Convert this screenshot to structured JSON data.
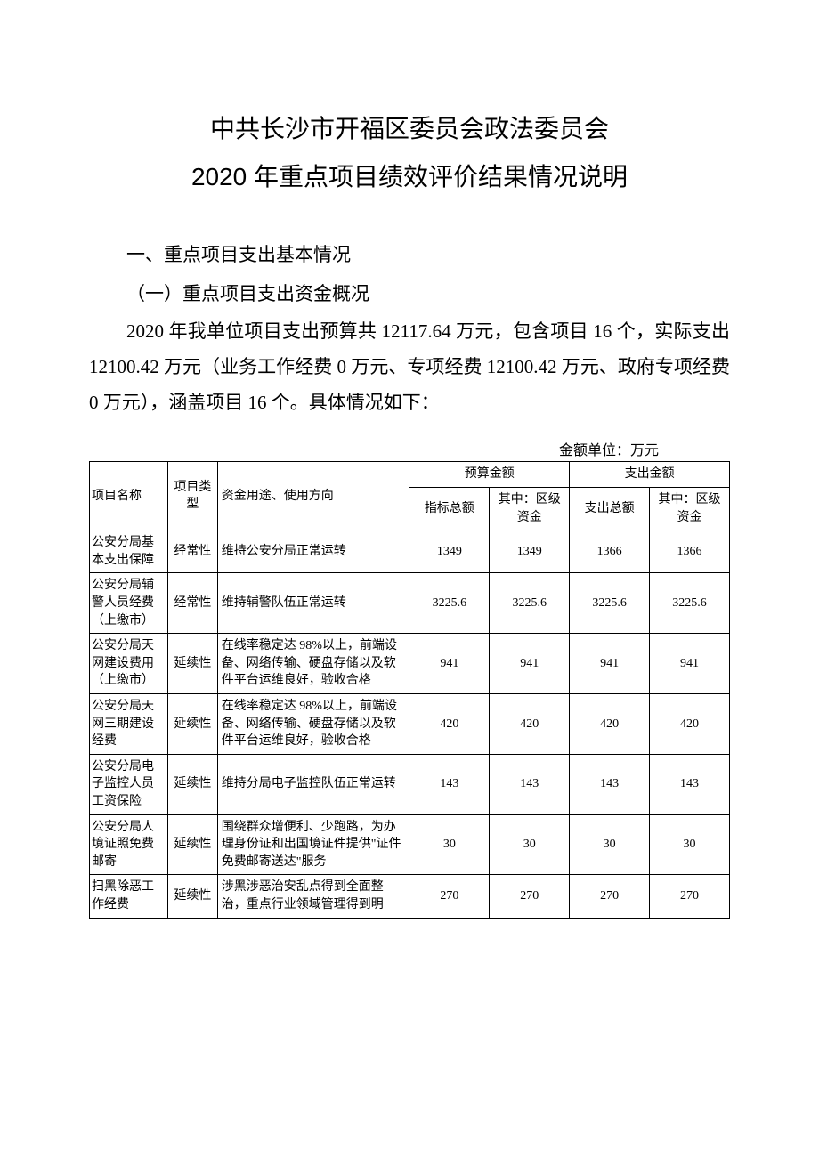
{
  "title_line1": "中共长沙市开福区委员会政法委员会",
  "title_line2": "2020 年重点项目绩效评价结果情况说明",
  "section_heading": "一、重点项目支出基本情况",
  "sub_heading": "（一）重点项目支出资金概况",
  "paragraph": "2020 年我单位项目支出预算共 12117.64 万元，包含项目 16 个，实际支出 12100.42 万元（业务工作经费 0 万元、专项经费 12100.42 万元、政府专项经费 0 万元），涵盖项目 16 个。具体情况如下：",
  "unit_label": "金额单位：万元",
  "table": {
    "headers": {
      "name": "项目名称",
      "type": "项目类型",
      "desc": "资金用途、使用方向",
      "budget_group": "预算金额",
      "spend_group": "支出金额",
      "total_index": "指标总额",
      "district_fund": "其中：区级资金",
      "spend_total": "支出总额",
      "spend_district": "其中：区级资金"
    },
    "rows": [
      {
        "name": "公安分局基本支出保障",
        "type": "经常性",
        "desc": "维持公安分局正常运转",
        "budget_total": "1349",
        "budget_district": "1349",
        "spend_total": "1366",
        "spend_district": "1366"
      },
      {
        "name": "公安分局辅警人员经费（上缴市）",
        "type": "经常性",
        "desc": "维持辅警队伍正常运转",
        "budget_total": "3225.6",
        "budget_district": "3225.6",
        "spend_total": "3225.6",
        "spend_district": "3225.6"
      },
      {
        "name": "公安分局天网建设费用（上缴市）",
        "type": "延续性",
        "desc": "在线率稳定达 98%以上，前端设备、网络传输、硬盘存储以及软件平台运维良好，验收合格",
        "budget_total": "941",
        "budget_district": "941",
        "spend_total": "941",
        "spend_district": "941"
      },
      {
        "name": "公安分局天网三期建设经费",
        "type": "延续性",
        "desc": "在线率稳定达 98%以上，前端设备、网络传输、硬盘存储以及软件平台运维良好，验收合格",
        "budget_total": "420",
        "budget_district": "420",
        "spend_total": "420",
        "spend_district": "420"
      },
      {
        "name": "公安分局电子监控人员工资保险",
        "type": "延续性",
        "desc": "维持分局电子监控队伍正常运转",
        "budget_total": "143",
        "budget_district": "143",
        "spend_total": "143",
        "spend_district": "143"
      },
      {
        "name": "公安分局人境证照免费邮寄",
        "type": "延续性",
        "desc": "围绕群众增便利、少跑路，为办理身份证和出国境证件提供\"证件免费邮寄送达\"服务",
        "budget_total": "30",
        "budget_district": "30",
        "spend_total": "30",
        "spend_district": "30"
      },
      {
        "name": "扫黑除恶工作经费",
        "type": "延续性",
        "desc": "涉黑涉恶治安乱点得到全面整治，重点行业领域管理得到明",
        "budget_total": "270",
        "budget_district": "270",
        "spend_total": "270",
        "spend_district": "270"
      }
    ]
  }
}
